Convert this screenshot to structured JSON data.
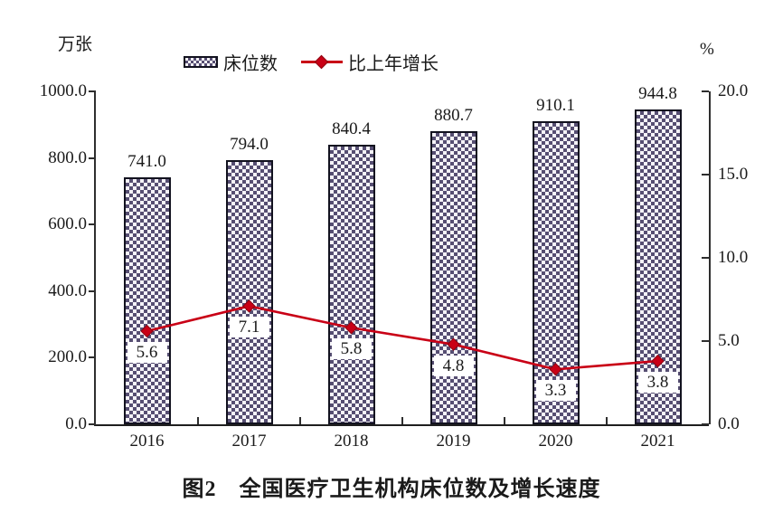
{
  "figure": {
    "title": "图2　全国医疗卫生机构床位数及增长速度",
    "left_unit": "万张",
    "right_unit": "%"
  },
  "colors": {
    "bar_fill_dark": "#564E72",
    "bar_fill_light": "#F5F3F8",
    "bar_border": "#12121F",
    "line": "#C90016",
    "marker_stroke": "#8D0010",
    "axis": "#2E2E2E",
    "text": "#1A1A1A",
    "background": "#FFFFFF"
  },
  "chart_data": {
    "type": "bar+line",
    "title": "图2　全国医疗卫生机构床位数及增长速度",
    "categories": [
      "2016",
      "2017",
      "2018",
      "2019",
      "2020",
      "2021"
    ],
    "series": [
      {
        "name": "床位数",
        "type": "bar",
        "axis": "left",
        "values": [
          741.0,
          794.0,
          840.4,
          880.7,
          910.1,
          944.8
        ],
        "labels": [
          "741.0",
          "794.0",
          "840.4",
          "880.7",
          "910.1",
          "944.8"
        ]
      },
      {
        "name": "比上年增长",
        "type": "line",
        "axis": "right",
        "values": [
          5.6,
          7.1,
          5.8,
          4.8,
          3.3,
          3.8
        ],
        "labels": [
          "5.6",
          "7.1",
          "5.8",
          "4.8",
          "3.3",
          "3.8"
        ]
      }
    ],
    "left_axis": {
      "label": "万张",
      "min": 0,
      "max": 1000,
      "step": 200,
      "ticks": [
        "0.0",
        "200.0",
        "400.0",
        "600.0",
        "800.0",
        "1000.0"
      ]
    },
    "right_axis": {
      "label": "%",
      "min": 0,
      "max": 20,
      "step": 5,
      "ticks": [
        "0.0",
        "5.0",
        "10.0",
        "15.0",
        "20.0"
      ]
    },
    "grid": false,
    "legend_position": "top"
  }
}
